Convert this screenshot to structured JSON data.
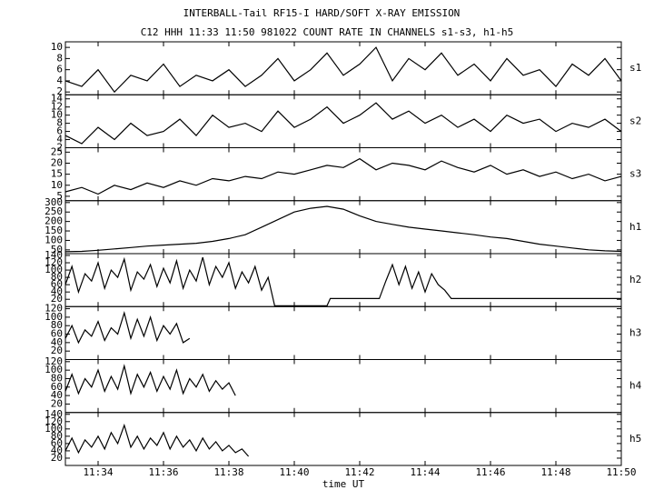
{
  "chart_data": {
    "type": "line",
    "title": "INTERBALL-Tail RF15-I HARD/SOFT X-RAY EMISSION",
    "subtitle": "C12 HHH 11:33 11:50 981022  COUNT RATE IN CHANNELS s1-s3, h1-h5",
    "x_label": "time UT",
    "color": "#000000",
    "xlim": [
      693,
      710
    ],
    "xticks": [
      {
        "value": 694,
        "label": "11:34"
      },
      {
        "value": 696,
        "label": "11:36"
      },
      {
        "value": 698,
        "label": "11:38"
      },
      {
        "value": 700,
        "label": "11:40"
      },
      {
        "value": 702,
        "label": "11:42"
      },
      {
        "value": 704,
        "label": "11:44"
      },
      {
        "value": 706,
        "label": "11:46"
      },
      {
        "value": 708,
        "label": "11:48"
      },
      {
        "value": 710,
        "label": "11:50"
      }
    ],
    "panels": [
      {
        "name": "s1",
        "ylim": [
          1.5,
          11
        ],
        "yticks": [
          2,
          4,
          6,
          8,
          10
        ],
        "x": [
          693,
          693.5,
          694,
          694.5,
          695,
          695.5,
          696,
          696.5,
          697,
          697.5,
          698,
          698.5,
          699,
          699.5,
          700,
          700.5,
          701,
          701.5,
          702,
          702.5,
          703,
          703.5,
          704,
          704.5,
          705,
          705.5,
          706,
          706.5,
          707,
          707.5,
          708,
          708.5,
          709,
          709.5,
          710
        ],
        "values": [
          4,
          3,
          6,
          2,
          5,
          4,
          7,
          3,
          5,
          4,
          6,
          3,
          5,
          8,
          4,
          6,
          9,
          5,
          7,
          10,
          4,
          8,
          6,
          9,
          5,
          7,
          4,
          8,
          5,
          6,
          3,
          7,
          5,
          8,
          4
        ]
      },
      {
        "name": "s2",
        "ylim": [
          2,
          15
        ],
        "yticks": [
          2,
          4,
          6,
          8,
          10,
          12,
          14
        ],
        "x": [
          693,
          693.5,
          694,
          694.5,
          695,
          695.5,
          696,
          696.5,
          697,
          697.5,
          698,
          698.5,
          699,
          699.5,
          700,
          700.5,
          701,
          701.5,
          702,
          702.5,
          703,
          703.5,
          704,
          704.5,
          705,
          705.5,
          706,
          706.5,
          707,
          707.5,
          708,
          708.5,
          709,
          709.5,
          710
        ],
        "values": [
          5,
          3,
          7,
          4,
          8,
          5,
          6,
          9,
          5,
          10,
          7,
          8,
          6,
          11,
          7,
          9,
          12,
          8,
          10,
          13,
          9,
          11,
          8,
          10,
          7,
          9,
          6,
          10,
          8,
          9,
          6,
          8,
          7,
          9,
          6
        ]
      },
      {
        "name": "s3",
        "ylim": [
          3,
          27
        ],
        "yticks": [
          5,
          10,
          15,
          20,
          25
        ],
        "x": [
          693,
          693.5,
          694,
          694.5,
          695,
          695.5,
          696,
          696.5,
          697,
          697.5,
          698,
          698.5,
          699,
          699.5,
          700,
          700.5,
          701,
          701.5,
          702,
          702.5,
          703,
          703.5,
          704,
          704.5,
          705,
          705.5,
          706,
          706.5,
          707,
          707.5,
          708,
          708.5,
          709,
          709.5,
          710
        ],
        "values": [
          7,
          9,
          6,
          10,
          8,
          11,
          9,
          12,
          10,
          13,
          12,
          14,
          13,
          16,
          15,
          17,
          19,
          18,
          22,
          17,
          20,
          19,
          17,
          21,
          18,
          16,
          19,
          15,
          17,
          14,
          16,
          13,
          15,
          12,
          14
        ]
      },
      {
        "name": "h1",
        "ylim": [
          30,
          310
        ],
        "yticks": [
          50,
          100,
          150,
          200,
          250,
          300
        ],
        "x": [
          693,
          693.5,
          694,
          694.5,
          695,
          695.5,
          696,
          696.5,
          697,
          697.5,
          698,
          698.5,
          699,
          699.5,
          700,
          700.5,
          701,
          701.5,
          702,
          702.5,
          703,
          703.5,
          704,
          704.5,
          705,
          705.5,
          706,
          706.5,
          707,
          707.5,
          708,
          708.5,
          709,
          709.5,
          710
        ],
        "values": [
          40,
          42,
          48,
          55,
          62,
          70,
          75,
          80,
          85,
          95,
          110,
          130,
          170,
          210,
          250,
          270,
          280,
          265,
          230,
          200,
          185,
          170,
          160,
          150,
          140,
          130,
          118,
          110,
          95,
          80,
          70,
          60,
          50,
          45,
          42
        ]
      },
      {
        "name": "h2",
        "ylim": [
          0,
          145
        ],
        "yticks": [
          20,
          40,
          60,
          80,
          100,
          120,
          140
        ],
        "x": [
          693,
          693.2,
          693.4,
          693.6,
          693.8,
          694,
          694.2,
          694.4,
          694.6,
          694.8,
          695,
          695.2,
          695.4,
          695.6,
          695.8,
          696,
          696.2,
          696.4,
          696.6,
          696.8,
          697,
          697.2,
          697.4,
          697.6,
          697.8,
          698,
          698.2,
          698.4,
          698.6,
          698.8,
          699,
          699.2,
          699.4,
          701,
          701.1,
          702.6,
          702.8,
          703,
          703.2,
          703.4,
          703.6,
          703.8,
          704,
          704.2,
          704.4,
          704.6,
          704.8,
          710
        ],
        "values": [
          60,
          110,
          40,
          90,
          70,
          120,
          50,
          100,
          80,
          130,
          45,
          95,
          75,
          115,
          55,
          105,
          65,
          125,
          50,
          100,
          70,
          135,
          60,
          110,
          80,
          120,
          50,
          95,
          65,
          110,
          45,
          80,
          2,
          2,
          22,
          22,
          70,
          115,
          60,
          110,
          50,
          95,
          40,
          90,
          60,
          45,
          22,
          22
        ]
      },
      {
        "name": "h3",
        "ylim": [
          0,
          125
        ],
        "yticks": [
          20,
          40,
          60,
          80,
          100,
          120
        ],
        "x": [
          693,
          693.2,
          693.4,
          693.6,
          693.8,
          694,
          694.2,
          694.4,
          694.6,
          694.8,
          695,
          695.2,
          695.4,
          695.6,
          695.8,
          696,
          696.2,
          696.4,
          696.6,
          696.8
        ],
        "values": [
          50,
          80,
          40,
          70,
          55,
          90,
          45,
          75,
          60,
          110,
          50,
          95,
          55,
          100,
          45,
          80,
          60,
          85,
          40,
          50
        ]
      },
      {
        "name": "h4",
        "ylim": [
          0,
          125
        ],
        "yticks": [
          20,
          40,
          60,
          80,
          100,
          120
        ],
        "x": [
          693,
          693.2,
          693.4,
          693.6,
          693.8,
          694,
          694.2,
          694.4,
          694.6,
          694.8,
          695,
          695.2,
          695.4,
          695.6,
          695.8,
          696,
          696.2,
          696.4,
          696.6,
          696.8,
          697,
          697.2,
          697.4,
          697.6,
          697.8,
          698,
          698.2
        ],
        "values": [
          50,
          90,
          45,
          80,
          60,
          100,
          50,
          85,
          55,
          110,
          45,
          90,
          60,
          95,
          50,
          85,
          55,
          100,
          45,
          80,
          60,
          90,
          50,
          75,
          55,
          70,
          40
        ]
      },
      {
        "name": "h5",
        "ylim": [
          0,
          145
        ],
        "yticks": [
          20,
          40,
          60,
          80,
          100,
          120,
          140
        ],
        "x": [
          693,
          693.2,
          693.4,
          693.6,
          693.8,
          694,
          694.2,
          694.4,
          694.6,
          694.8,
          695,
          695.2,
          695.4,
          695.6,
          695.8,
          696,
          696.2,
          696.4,
          696.6,
          696.8,
          697,
          697.2,
          697.4,
          697.6,
          697.8,
          698,
          698.2,
          698.4,
          698.6
        ],
        "values": [
          40,
          75,
          35,
          70,
          50,
          80,
          45,
          90,
          60,
          110,
          50,
          80,
          45,
          75,
          55,
          90,
          45,
          80,
          50,
          70,
          40,
          75,
          45,
          65,
          40,
          55,
          35,
          45,
          25
        ]
      }
    ]
  }
}
